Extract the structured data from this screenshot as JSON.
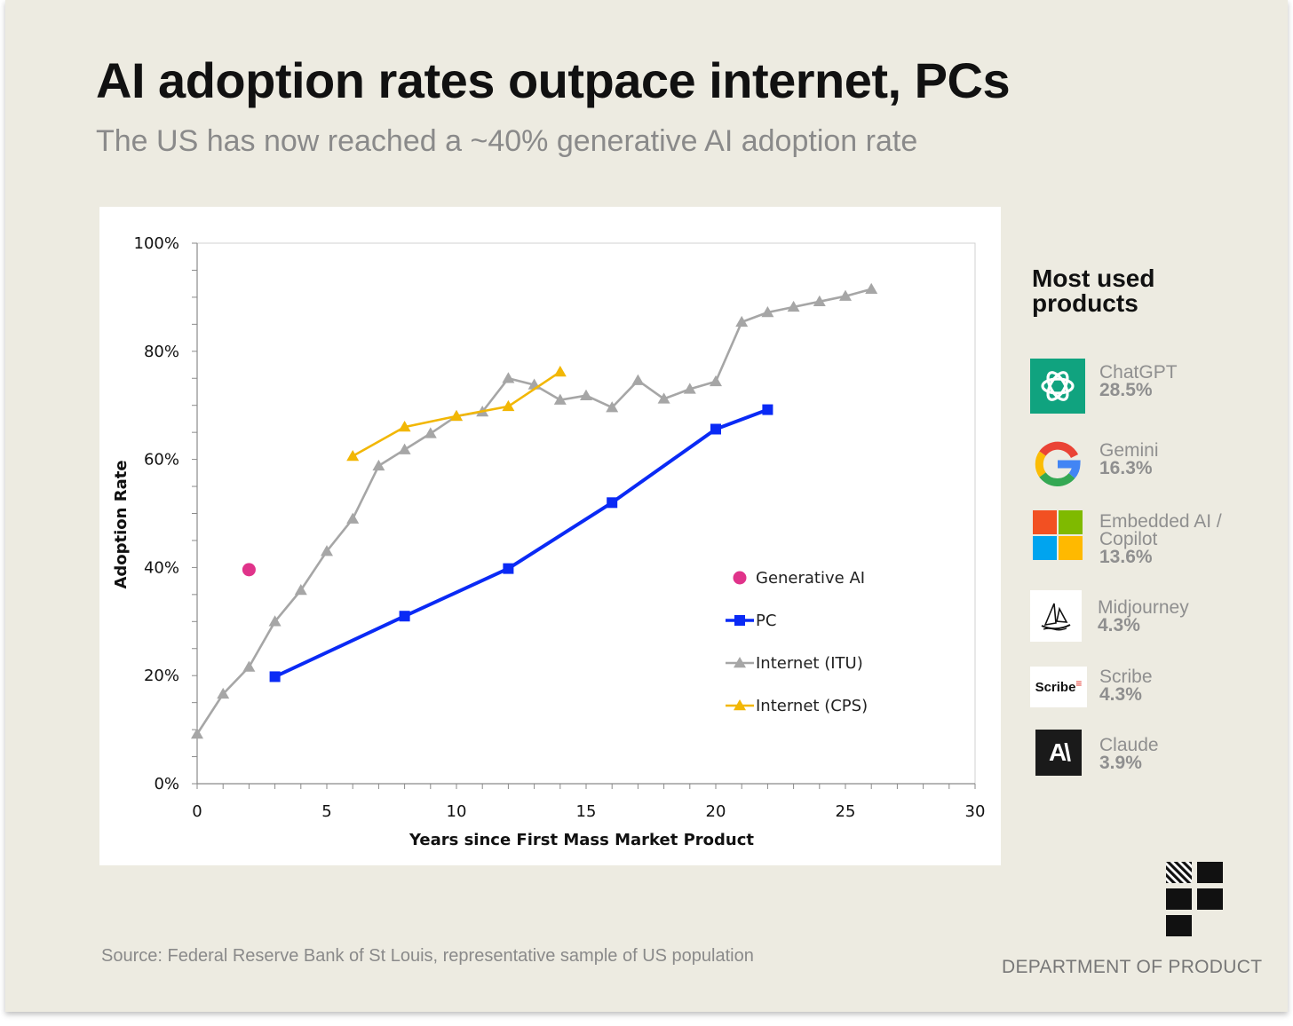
{
  "title": "AI adoption rates outpace internet, PCs",
  "subtitle": "The US has now reached a ~40% generative AI adoption rate",
  "source": "Source: Federal Reserve Bank of St Louis, representative sample of US population",
  "brand": "DEPARTMENT OF PRODUCT",
  "products": {
    "heading": "Most used products",
    "items": [
      {
        "name": "ChatGPT",
        "share": "28.5%",
        "icon": "chatgpt-logo-icon"
      },
      {
        "name": "Gemini",
        "share": "16.3%",
        "icon": "google-logo-icon"
      },
      {
        "name": "Embedded AI / Copilot",
        "share": "13.6%",
        "icon": "microsoft-logo-icon"
      },
      {
        "name": "Midjourney",
        "share": "4.3%",
        "icon": "midjourney-logo-icon"
      },
      {
        "name": "Scribe",
        "share": "4.3%",
        "icon": "scribe-logo-icon",
        "logo_text": "Scribe"
      },
      {
        "name": "Claude",
        "share": "3.9%",
        "icon": "anthropic-logo-icon",
        "logo_text": "A\\"
      }
    ]
  },
  "colors": {
    "background": "#edebe1",
    "generative_ai": "#e0338a",
    "pc": "#0a2af5",
    "internet_itu": "#a6a6a6",
    "internet_cps": "#f2b705",
    "chatgpt": "#10a37f"
  },
  "chart_data": {
    "type": "line",
    "xlabel": "Years since First Mass Market Product",
    "ylabel": "Adoption Rate",
    "xlim": [
      0,
      30
    ],
    "ylim": [
      0,
      100
    ],
    "x_ticks": [
      "0",
      "5",
      "10",
      "15",
      "20",
      "25",
      "30"
    ],
    "y_ticks": [
      "0%",
      "20%",
      "40%",
      "60%",
      "80%",
      "100%"
    ],
    "legend_position": "center-right",
    "grid": false,
    "series": [
      {
        "name": "Generative AI",
        "marker": "circle",
        "line": false,
        "color": "#e0338a",
        "points": [
          [
            2,
            39.6
          ]
        ]
      },
      {
        "name": "PC",
        "marker": "square",
        "line": true,
        "color": "#0a2af5",
        "points": [
          [
            3,
            19.8
          ],
          [
            8,
            31.0
          ],
          [
            12,
            39.8
          ],
          [
            16,
            52.0
          ],
          [
            20,
            65.6
          ],
          [
            22,
            69.2
          ]
        ]
      },
      {
        "name": "Internet (ITU)",
        "marker": "triangle",
        "line": true,
        "color": "#a6a6a6",
        "points": [
          [
            0,
            9.2
          ],
          [
            1,
            16.6
          ],
          [
            2,
            21.6
          ],
          [
            3,
            30.0
          ],
          [
            4,
            35.8
          ],
          [
            5,
            43.0
          ],
          [
            6,
            49.0
          ],
          [
            7,
            58.8
          ],
          [
            8,
            61.8
          ],
          [
            9,
            64.8
          ],
          [
            10,
            68.0
          ],
          [
            11,
            68.8
          ],
          [
            12,
            75.0
          ],
          [
            13,
            73.8
          ],
          [
            14,
            71.0
          ],
          [
            15,
            71.8
          ],
          [
            16,
            69.6
          ],
          [
            17,
            74.6
          ],
          [
            18,
            71.2
          ],
          [
            19,
            73.0
          ],
          [
            20,
            74.4
          ],
          [
            21,
            85.4
          ],
          [
            22,
            87.2
          ],
          [
            23,
            88.2
          ],
          [
            24,
            89.2
          ],
          [
            25,
            90.2
          ],
          [
            26,
            91.5
          ]
        ]
      },
      {
        "name": "Internet (CPS)",
        "marker": "triangle",
        "line": true,
        "color": "#f2b705",
        "points": [
          [
            6,
            60.6
          ],
          [
            8,
            66.0
          ],
          [
            10,
            68.0
          ],
          [
            12,
            69.8
          ],
          [
            14,
            76.2
          ]
        ]
      }
    ]
  }
}
